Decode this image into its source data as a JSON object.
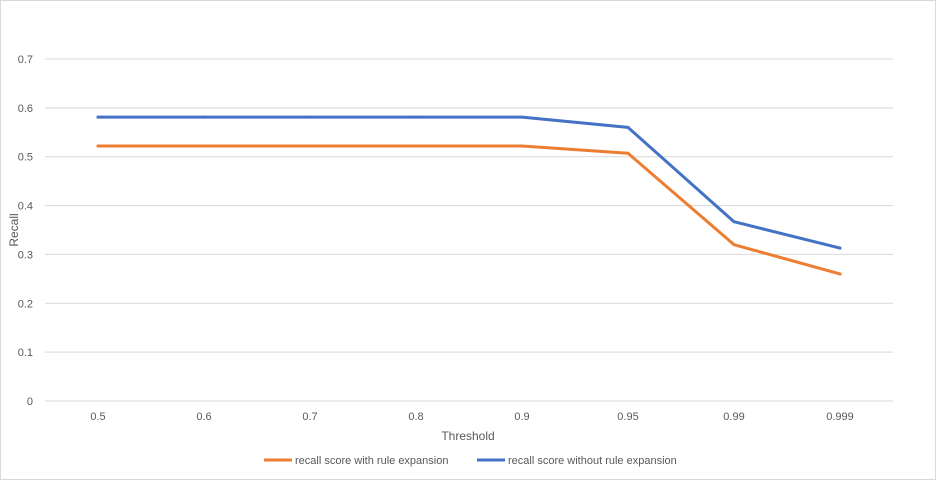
{
  "chart_data": {
    "type": "line",
    "title": "",
    "xlabel": "Threshold",
    "ylabel": "Recall",
    "categories": [
      "0.5",
      "0.6",
      "0.7",
      "0.8",
      "0.9",
      "0.95",
      "0.99",
      "0.999"
    ],
    "ylim": [
      0,
      0.7
    ],
    "yticks": [
      "0",
      "0.1",
      "0.2",
      "0.3",
      "0.4",
      "0.5",
      "0.6",
      "0.7"
    ],
    "grid": true,
    "legend_position": "bottom",
    "series": [
      {
        "name": "recall score with rule expansion",
        "color": "#ED7D31",
        "values": [
          0.522,
          0.522,
          0.522,
          0.522,
          0.522,
          0.507,
          0.32,
          0.26
        ]
      },
      {
        "name": "recall score without rule expansion",
        "color": "#4472C4",
        "values": [
          0.581,
          0.581,
          0.581,
          0.581,
          0.581,
          0.56,
          0.367,
          0.313
        ]
      }
    ]
  }
}
